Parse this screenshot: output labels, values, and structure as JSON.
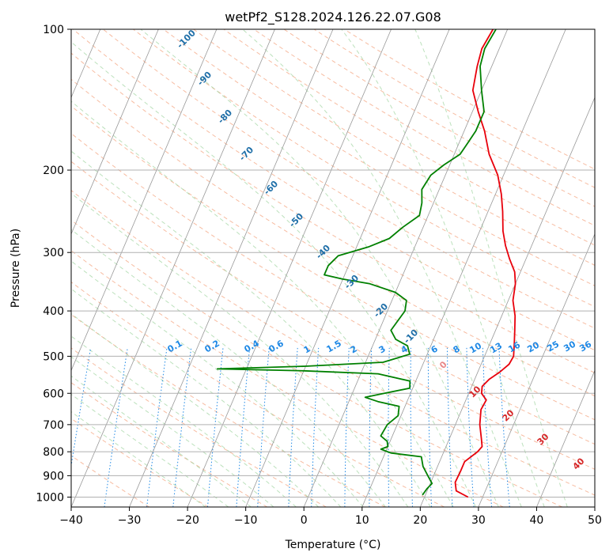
{
  "chart_data": {
    "type": "line",
    "title": "wetPf2_S128.2024.126.22.07.G08",
    "xlabel": "Temperature (°C)",
    "ylabel": "Pressure (hPa)",
    "xlim": [
      -40,
      50
    ],
    "ylim": [
      1050,
      100
    ],
    "y_scale": "log",
    "x_ticks": [
      -40,
      -30,
      -20,
      -10,
      0,
      10,
      20,
      30,
      40,
      50
    ],
    "y_ticks": [
      100,
      200,
      300,
      400,
      500,
      600,
      700,
      800,
      900,
      1000
    ],
    "grid": true,
    "series": [
      {
        "color": "#e8000b",
        "points": [
          [
            27.5,
            1000
          ],
          [
            25.0,
            970
          ],
          [
            24.2,
            930
          ],
          [
            24.3,
            880
          ],
          [
            24.3,
            840
          ],
          [
            25.8,
            800
          ],
          [
            26.2,
            780
          ],
          [
            25.5,
            750
          ],
          [
            24.2,
            700
          ],
          [
            23.3,
            650
          ],
          [
            23.5,
            620
          ],
          [
            22.2,
            600
          ],
          [
            21.8,
            580
          ],
          [
            22.5,
            560
          ],
          [
            23.8,
            540
          ],
          [
            24.8,
            520
          ],
          [
            25.0,
            500
          ],
          [
            24.2,
            470
          ],
          [
            23.3,
            440
          ],
          [
            22.3,
            410
          ],
          [
            20.8,
            380
          ],
          [
            20.0,
            350
          ],
          [
            19.0,
            330
          ],
          [
            17.2,
            310
          ],
          [
            15.5,
            290
          ],
          [
            14.0,
            270
          ],
          [
            12.5,
            245
          ],
          [
            11.0,
            225
          ],
          [
            9.0,
            205
          ],
          [
            6.0,
            185
          ],
          [
            3.5,
            165
          ],
          [
            1.0,
            150
          ],
          [
            -1.5,
            135
          ],
          [
            -2.5,
            120
          ],
          [
            -3.0,
            110
          ],
          [
            -2.5,
            100
          ]
        ]
      },
      {
        "color": "#008000",
        "points": [
          [
            19.5,
            990
          ],
          [
            19.8,
            960
          ],
          [
            20.3,
            935
          ],
          [
            19.0,
            900
          ],
          [
            17.5,
            860
          ],
          [
            16.5,
            820
          ],
          [
            11.0,
            805
          ],
          [
            9.0,
            790
          ],
          [
            10.0,
            780
          ],
          [
            9.5,
            760
          ],
          [
            8.0,
            740
          ],
          [
            8.3,
            700
          ],
          [
            9.5,
            670
          ],
          [
            9.0,
            640
          ],
          [
            5.0,
            625
          ],
          [
            2.5,
            612
          ],
          [
            5.5,
            600
          ],
          [
            9.5,
            585
          ],
          [
            9.0,
            565
          ],
          [
            3.0,
            545
          ],
          [
            -10.0,
            537
          ],
          [
            -25.0,
            532
          ],
          [
            -10.0,
            525
          ],
          [
            3.0,
            515
          ],
          [
            7.0,
            495
          ],
          [
            6.0,
            475
          ],
          [
            3.5,
            460
          ],
          [
            2.0,
            440
          ],
          [
            2.5,
            420
          ],
          [
            3.0,
            400
          ],
          [
            2.5,
            380
          ],
          [
            0.0,
            365
          ],
          [
            -5.0,
            350
          ],
          [
            -10.0,
            342
          ],
          [
            -13.5,
            335
          ],
          [
            -13.5,
            320
          ],
          [
            -12.5,
            305
          ],
          [
            -8.0,
            292
          ],
          [
            -5.0,
            280
          ],
          [
            -3.5,
            265
          ],
          [
            -1.5,
            250
          ],
          [
            -2.0,
            235
          ],
          [
            -3.0,
            220
          ],
          [
            -2.5,
            205
          ],
          [
            -1.0,
            195
          ],
          [
            1.0,
            185
          ],
          [
            1.5,
            175
          ],
          [
            2.0,
            165
          ],
          [
            2.0,
            150
          ],
          [
            0.0,
            135
          ],
          [
            -2.0,
            120
          ],
          [
            -2.5,
            110
          ],
          [
            -2.0,
            100
          ]
        ]
      }
    ],
    "annotations": {
      "dry_adiabat_labels": [
        "-100",
        "-90",
        "-80",
        "-70",
        "-60",
        "-50",
        "-40",
        "-30",
        "-20",
        "-10"
      ],
      "mixing_ratio_labels": [
        "0.1",
        "0.2",
        "0.4",
        "0.6",
        "1",
        "1.5",
        "2",
        "3",
        "4",
        "6",
        "8",
        "10",
        "13",
        "16",
        "20",
        "25",
        "30",
        "36"
      ],
      "moist_adiabat_labels": [
        "0",
        "10",
        "20",
        "30",
        "40"
      ]
    }
  }
}
